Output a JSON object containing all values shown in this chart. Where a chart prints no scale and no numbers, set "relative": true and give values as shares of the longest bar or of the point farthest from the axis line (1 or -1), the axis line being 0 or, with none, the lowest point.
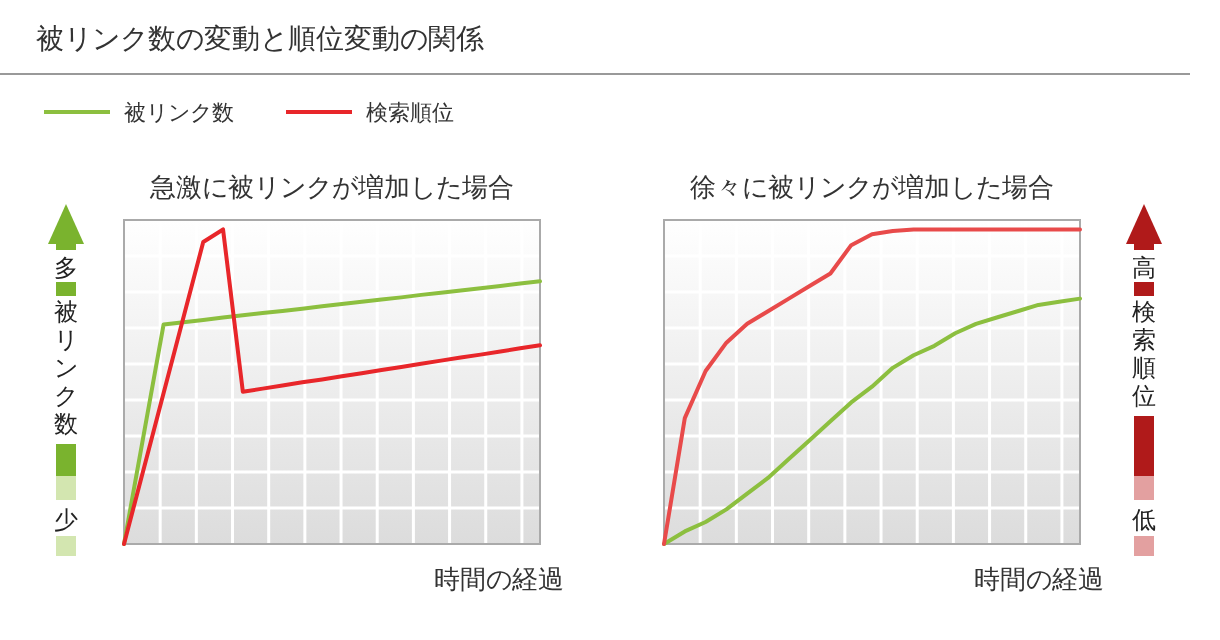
{
  "chart_data": [
    {
      "type": "line",
      "title": "急激に被リンクが増加した場合",
      "xlabel": "時間の経過",
      "ylabel": "被リンク数",
      "relative": true,
      "grid": true,
      "legend": "top left",
      "annotations": [
        "被リンク数の変動と順位変動の関係",
        "多",
        "少"
      ],
      "categories": [
        null,
        null,
        null,
        null,
        null,
        null,
        null,
        null,
        null,
        null,
        null,
        null,
        null,
        null,
        null,
        null,
        null,
        null,
        null,
        null,
        null,
        null
      ],
      "series": [
        {
          "name": "被リンク数",
          "color": "#8cbf3f",
          "values": [
            0,
            0.349,
            0.698,
            0.705,
            0.712,
            0.72,
            0.727,
            0.734,
            0.741,
            0.748,
            0.756,
            0.763,
            0.77,
            0.777,
            0.784,
            0.792,
            0.799,
            0.806,
            0.813,
            0.82,
            0.828,
            0.835
          ]
        },
        {
          "name": "検索順位",
          "color": "#e8262a",
          "values": [
            0,
            0.24,
            0.48,
            0.72,
            0.96,
            1,
            0.484,
            0.494,
            0.504,
            0.514,
            0.523,
            0.533,
            0.543,
            0.553,
            0.563,
            0.573,
            0.583,
            0.593,
            0.602,
            0.612,
            0.622,
            0.632
          ]
        }
      ]
    },
    {
      "type": "line",
      "title": "徐々に被リンクが増加した場合",
      "xlabel": "時間の経過",
      "ylabel": "検索順位",
      "relative": true,
      "grid": true,
      "legend": false,
      "annotations": [
        "高",
        "低"
      ],
      "categories": [
        null,
        null,
        null,
        null,
        null,
        null,
        null,
        null,
        null,
        null,
        null,
        null,
        null,
        null,
        null,
        null,
        null,
        null,
        null,
        null,
        null
      ],
      "series": [
        {
          "color": "#8cbf3f",
          "values": [
            0,
            0.04,
            0.07,
            0.11,
            0.16,
            0.21,
            0.27,
            0.33,
            0.39,
            0.45,
            0.5,
            0.56,
            0.6,
            0.63,
            0.67,
            0.7,
            0.72,
            0.74,
            0.76,
            0.77,
            0.78
          ]
        },
        {
          "color": "#e84a4a",
          "values": [
            0,
            0.4,
            0.55,
            0.64,
            0.7,
            0.74,
            0.78,
            0.82,
            0.86,
            0.95,
            0.985,
            0.995,
            1,
            1,
            1,
            1,
            1,
            1,
            1,
            1,
            1
          ]
        }
      ]
    }
  ]
}
